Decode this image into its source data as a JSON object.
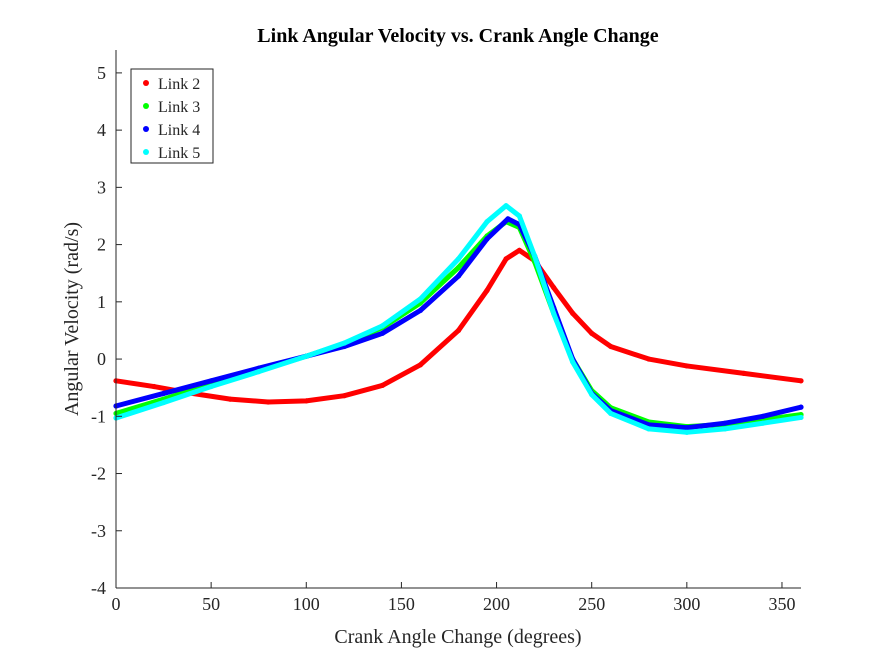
{
  "chart_data": {
    "type": "scatter",
    "title": "Link Angular Velocity vs. Crank Angle Change",
    "xlabel": "Crank Angle Change (degrees)",
    "ylabel": "Angular Velocity (rad/s)",
    "xlim": [
      0,
      360
    ],
    "ylim": [
      -4,
      5.4
    ],
    "x_ticks": [
      "0",
      "50",
      "100",
      "150",
      "200",
      "250",
      "300",
      "350"
    ],
    "x_tick_values": [
      0,
      50,
      100,
      150,
      200,
      250,
      300,
      350
    ],
    "y_ticks": [
      "-4",
      "-3",
      "-2",
      "-1",
      "0",
      "1",
      "2",
      "3",
      "4",
      "5"
    ],
    "y_tick_values": [
      -4,
      -3,
      -2,
      -1,
      0,
      1,
      2,
      3,
      4,
      5
    ],
    "grid": false,
    "legend_position": "top-left",
    "series": [
      {
        "name": "Link 2",
        "color": "#ff0000",
        "points": [
          [
            0,
            -0.38
          ],
          [
            20,
            -0.48
          ],
          [
            40,
            -0.6
          ],
          [
            60,
            -0.7
          ],
          [
            80,
            -0.75
          ],
          [
            100,
            -0.73
          ],
          [
            120,
            -0.64
          ],
          [
            140,
            -0.46
          ],
          [
            160,
            -0.1
          ],
          [
            180,
            0.5
          ],
          [
            195,
            1.2
          ],
          [
            205,
            1.75
          ],
          [
            212,
            1.9
          ],
          [
            220,
            1.72
          ],
          [
            230,
            1.25
          ],
          [
            240,
            0.8
          ],
          [
            250,
            0.45
          ],
          [
            260,
            0.22
          ],
          [
            280,
            0.0
          ],
          [
            300,
            -0.12
          ],
          [
            330,
            -0.25
          ],
          [
            360,
            -0.38
          ]
        ]
      },
      {
        "name": "Link 3",
        "color": "#00ff00",
        "points": [
          [
            0,
            -0.95
          ],
          [
            25,
            -0.7
          ],
          [
            50,
            -0.44
          ],
          [
            75,
            -0.2
          ],
          [
            100,
            0.05
          ],
          [
            120,
            0.27
          ],
          [
            140,
            0.55
          ],
          [
            160,
            0.98
          ],
          [
            180,
            1.6
          ],
          [
            195,
            2.15
          ],
          [
            205,
            2.4
          ],
          [
            212,
            2.3
          ],
          [
            220,
            1.7
          ],
          [
            230,
            0.8
          ],
          [
            240,
            0.0
          ],
          [
            250,
            -0.55
          ],
          [
            260,
            -0.85
          ],
          [
            280,
            -1.1
          ],
          [
            300,
            -1.18
          ],
          [
            320,
            -1.14
          ],
          [
            340,
            -1.06
          ],
          [
            360,
            -0.97
          ]
        ]
      },
      {
        "name": "Link 4",
        "color": "#0000ff",
        "points": [
          [
            0,
            -0.82
          ],
          [
            25,
            -0.6
          ],
          [
            50,
            -0.38
          ],
          [
            75,
            -0.16
          ],
          [
            100,
            0.05
          ],
          [
            120,
            0.22
          ],
          [
            140,
            0.45
          ],
          [
            160,
            0.85
          ],
          [
            180,
            1.45
          ],
          [
            195,
            2.1
          ],
          [
            206,
            2.45
          ],
          [
            212,
            2.35
          ],
          [
            220,
            1.8
          ],
          [
            230,
            0.9
          ],
          [
            240,
            0.0
          ],
          [
            250,
            -0.6
          ],
          [
            260,
            -0.9
          ],
          [
            280,
            -1.15
          ],
          [
            300,
            -1.2
          ],
          [
            320,
            -1.12
          ],
          [
            340,
            -1.0
          ],
          [
            360,
            -0.84
          ]
        ]
      },
      {
        "name": "Link 5",
        "color": "#00ffff",
        "points": [
          [
            0,
            -1.03
          ],
          [
            25,
            -0.76
          ],
          [
            50,
            -0.48
          ],
          [
            75,
            -0.22
          ],
          [
            100,
            0.05
          ],
          [
            120,
            0.28
          ],
          [
            140,
            0.58
          ],
          [
            160,
            1.05
          ],
          [
            180,
            1.75
          ],
          [
            195,
            2.4
          ],
          [
            205,
            2.68
          ],
          [
            212,
            2.5
          ],
          [
            220,
            1.8
          ],
          [
            230,
            0.8
          ],
          [
            240,
            -0.05
          ],
          [
            250,
            -0.62
          ],
          [
            260,
            -0.95
          ],
          [
            280,
            -1.22
          ],
          [
            300,
            -1.28
          ],
          [
            320,
            -1.22
          ],
          [
            340,
            -1.12
          ],
          [
            360,
            -1.02
          ]
        ]
      }
    ]
  }
}
